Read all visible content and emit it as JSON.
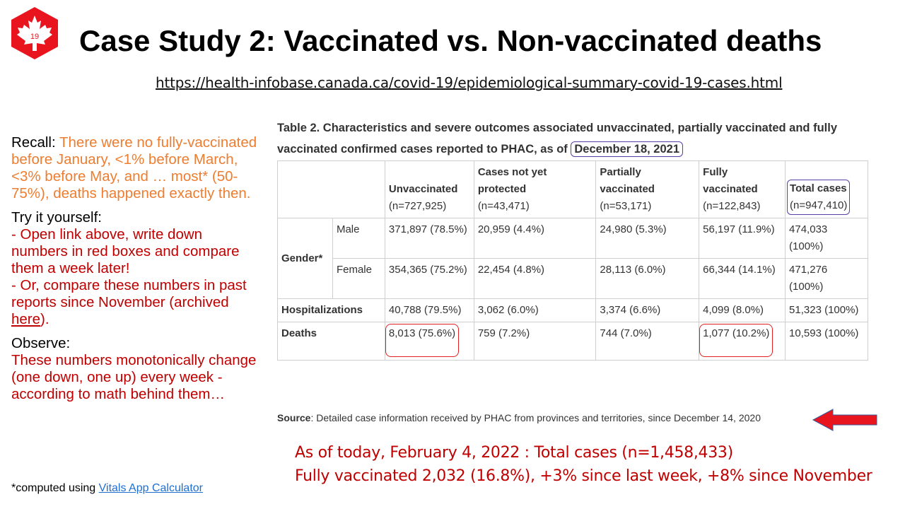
{
  "logo": {
    "icon": "maple-leaf-icon",
    "number": "19",
    "color": "#e8141e"
  },
  "title": "Case Study 2: Vaccinated vs. Non-vaccinated deaths",
  "url": "https://health-infobase.canada.ca/covid-19/epidemiological-summary-covid-19-cases.html",
  "left": {
    "recall_label": "Recall:",
    "recall_text": "There were no fully-vaccinated before January, <1% before March, <3% before May, and … most* (50-75%), deaths happened exactly then.",
    "try_label": "Try it yourself:",
    "try_line1": "- Open link above, write down numbers in red boxes and compare them a week later!",
    "try_line2_pre": "- Or, compare these numbers in past reports since November (archived ",
    "try_link": "here",
    "try_line2_post": ").",
    "observe_label": "Observe:",
    "observe_text": "These numbers monotonically change (one down, one up) every week  - according to math behind them…",
    "footnote_pre": "*computed using ",
    "footnote_link": "Vitals App Calculator"
  },
  "table": {
    "caption_pre": "Table 2. Characteristics and severe outcomes associated unvaccinated, partially vaccinated and fully vaccinated confirmed cases reported to PHAC, as of ",
    "caption_date": "December 18, 2021",
    "headers": [
      {
        "label": "Unvaccinated",
        "n": "(n=727,925)"
      },
      {
        "label": "Cases not yet protected",
        "n": "(n=43,471)"
      },
      {
        "label": "Partially vaccinated",
        "n": "(n=53,171)"
      },
      {
        "label": "Fully vaccinated",
        "n": "(n=122,843)"
      },
      {
        "label": "Total cases",
        "n": "(n=947,410)"
      }
    ],
    "gender_label": "Gender*",
    "male": {
      "label": "Male",
      "cells": [
        "371,897 (78.5%)",
        "20,959 (4.4%)",
        "24,980 (5.3%)",
        "56,197 (11.9%)",
        "474,033 (100%)"
      ]
    },
    "female": {
      "label": "Female",
      "cells": [
        "354,365 (75.2%)",
        "22,454 (4.8%)",
        "28,113 (6.0%)",
        "66,344 (14.1%)",
        "471,276 (100%)"
      ]
    },
    "hosp": {
      "label": "Hospitalizations",
      "cells": [
        "40,788 (79.5%)",
        "3,062 (6.0%)",
        "3,374 (6.6%)",
        "4,099 (8.0%)",
        "51,323 (100%)"
      ]
    },
    "deaths": {
      "label": "Deaths",
      "cells": [
        "8,013 (75.6%)",
        "759 (7.2%)",
        "744 (7.0%)",
        "1,077 (10.2%)",
        "10,593 (100%)"
      ]
    },
    "source_label": "Source",
    "source_text": ": Detailed case information received by PHAC from provinces and territories, since December 14, 2020"
  },
  "today": {
    "line1": "As of today, February 4, 2022 : Total cases (n=1,458,433)",
    "line2": "Fully vaccinated 2,032 (16.8%), +3% since last week, +8% since November"
  },
  "colors": {
    "orange": "#ed7d31",
    "red": "#c00000",
    "purple": "#5a3fa8",
    "highlight": "#e02020",
    "link": "#1f6fd1"
  }
}
